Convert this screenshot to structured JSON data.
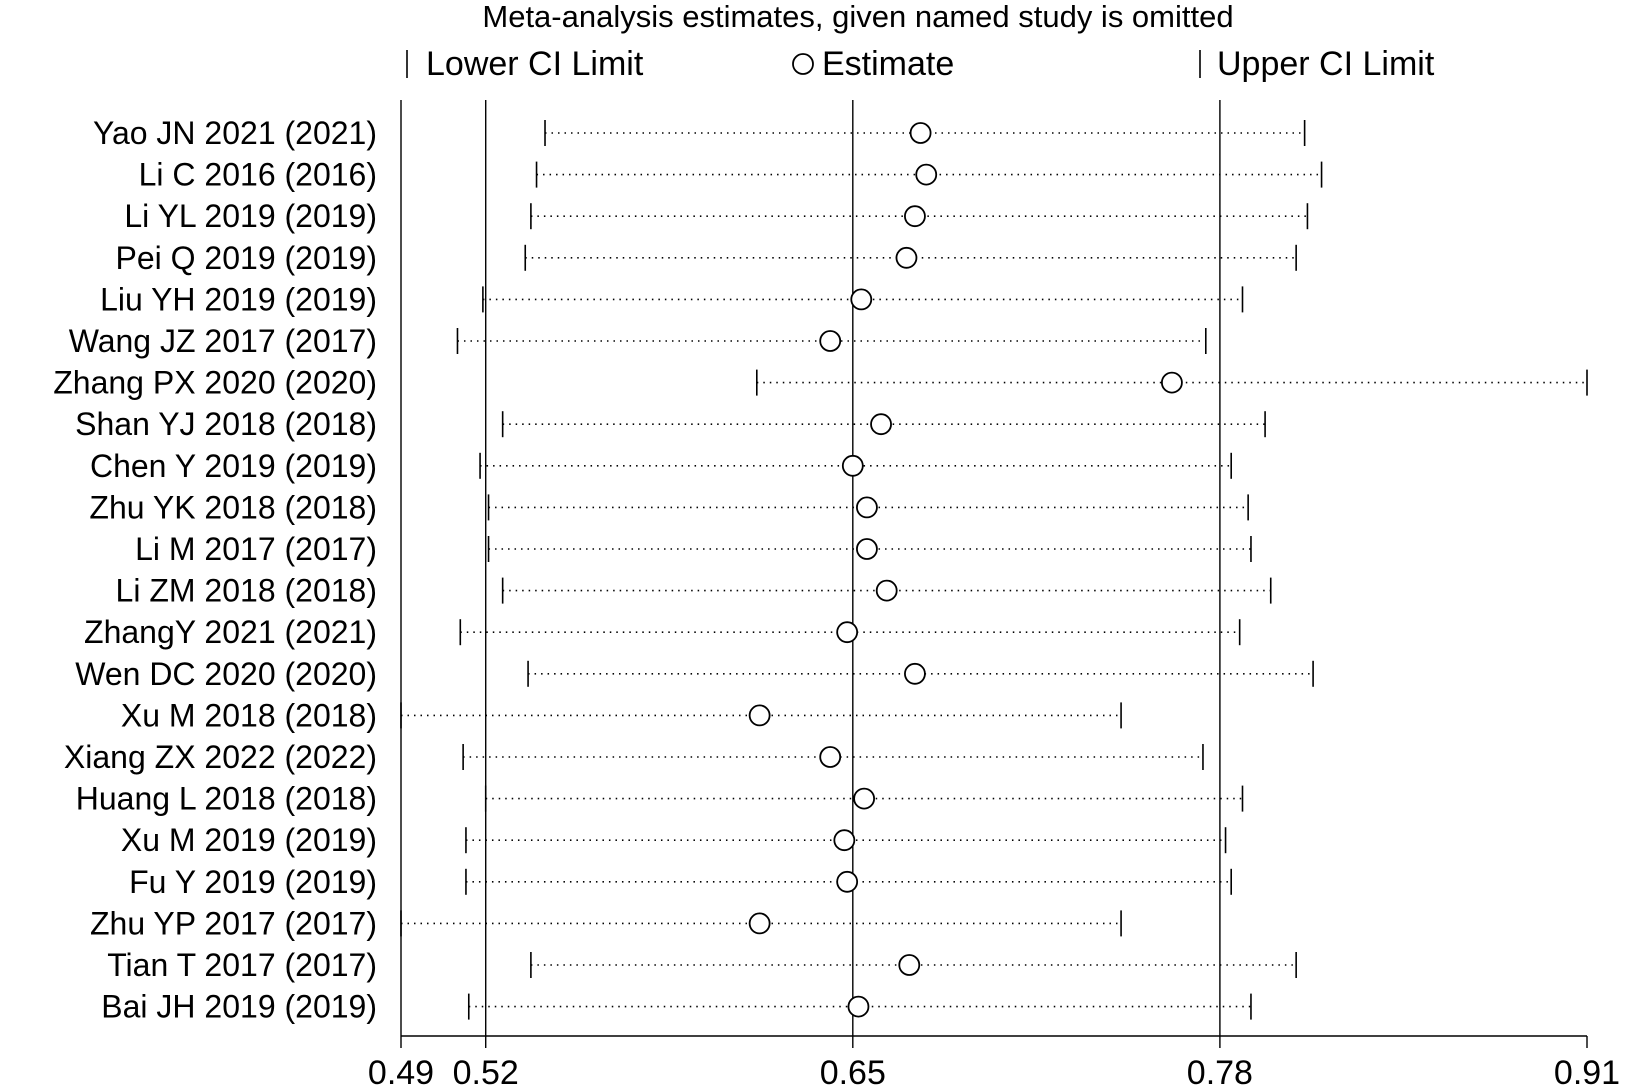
{
  "chart_data": {
    "type": "scatter",
    "title": "Meta-analysis estimates, given named study is omitted",
    "legend": {
      "placement": "top",
      "items": [
        {
          "symbol": "line",
          "label": "Lower CI Limit"
        },
        {
          "symbol": "circle",
          "label": "Estimate"
        },
        {
          "symbol": "line",
          "label": "Upper CI Limit"
        }
      ]
    },
    "xlim": [
      0.49,
      0.91
    ],
    "x_ticks": [
      {
        "value": 0.49,
        "label": "0.49"
      },
      {
        "value": 0.52,
        "label": "0.52"
      },
      {
        "value": 0.65,
        "label": "0.65"
      },
      {
        "value": 0.78,
        "label": "0.78"
      },
      {
        "value": 0.91,
        "label": "0.91"
      }
    ],
    "reference_lines": [
      0.49,
      0.52,
      0.65,
      0.78
    ],
    "grid": false,
    "studies": [
      {
        "label": "Yao JN 2021 (2021)",
        "lower": 0.541,
        "estimate": 0.674,
        "upper": 0.81
      },
      {
        "label": "Li  C 2016 (2016)",
        "lower": 0.538,
        "estimate": 0.676,
        "upper": 0.816
      },
      {
        "label": "Li YL 2019 (2019)",
        "lower": 0.536,
        "estimate": 0.672,
        "upper": 0.811
      },
      {
        "label": "Pei Q 2019 (2019)",
        "lower": 0.534,
        "estimate": 0.669,
        "upper": 0.807
      },
      {
        "label": "Liu YH 2019 (2019)",
        "lower": 0.519,
        "estimate": 0.653,
        "upper": 0.788
      },
      {
        "label": "Wang JZ 2017 (2017)",
        "lower": 0.51,
        "estimate": 0.642,
        "upper": 0.775
      },
      {
        "label": "Zhang PX 2020 (2020)",
        "lower": 0.616,
        "estimate": 0.763,
        "upper": 0.91
      },
      {
        "label": "Shan YJ 2018 (2018)",
        "lower": 0.526,
        "estimate": 0.66,
        "upper": 0.796
      },
      {
        "label": "Chen Y 2019 (2019)",
        "lower": 0.518,
        "estimate": 0.65,
        "upper": 0.784
      },
      {
        "label": "Zhu YK 2018 (2018)",
        "lower": 0.521,
        "estimate": 0.655,
        "upper": 0.79
      },
      {
        "label": "Li M 2017 (2017)",
        "lower": 0.521,
        "estimate": 0.655,
        "upper": 0.791
      },
      {
        "label": "Li ZM 2018 (2018)",
        "lower": 0.526,
        "estimate": 0.662,
        "upper": 0.798
      },
      {
        "label": "ZhangY 2021 (2021)",
        "lower": 0.511,
        "estimate": 0.648,
        "upper": 0.787
      },
      {
        "label": "Wen DC 2020 (2020)",
        "lower": 0.535,
        "estimate": 0.672,
        "upper": 0.813
      },
      {
        "label": "Xu M 2018 (2018)",
        "lower": 0.49,
        "estimate": 0.617,
        "upper": 0.745
      },
      {
        "label": "Xiang ZX 2022 (2022)",
        "lower": 0.512,
        "estimate": 0.642,
        "upper": 0.774
      },
      {
        "label": "Huang L 2018 (2018)",
        "lower": 0.52,
        "estimate": 0.654,
        "upper": 0.788
      },
      {
        "label": "Xu M 2019 (2019)",
        "lower": 0.513,
        "estimate": 0.647,
        "upper": 0.782
      },
      {
        "label": "Fu Y 2019 (2019)",
        "lower": 0.513,
        "estimate": 0.648,
        "upper": 0.784
      },
      {
        "label": "Zhu YP 2017 (2017)",
        "lower": 0.49,
        "estimate": 0.617,
        "upper": 0.745
      },
      {
        "label": "Tian T 2017 (2017)",
        "lower": 0.536,
        "estimate": 0.67,
        "upper": 0.807
      },
      {
        "label": "Bai JH 2019 (2019)",
        "lower": 0.514,
        "estimate": 0.652,
        "upper": 0.791
      }
    ]
  }
}
